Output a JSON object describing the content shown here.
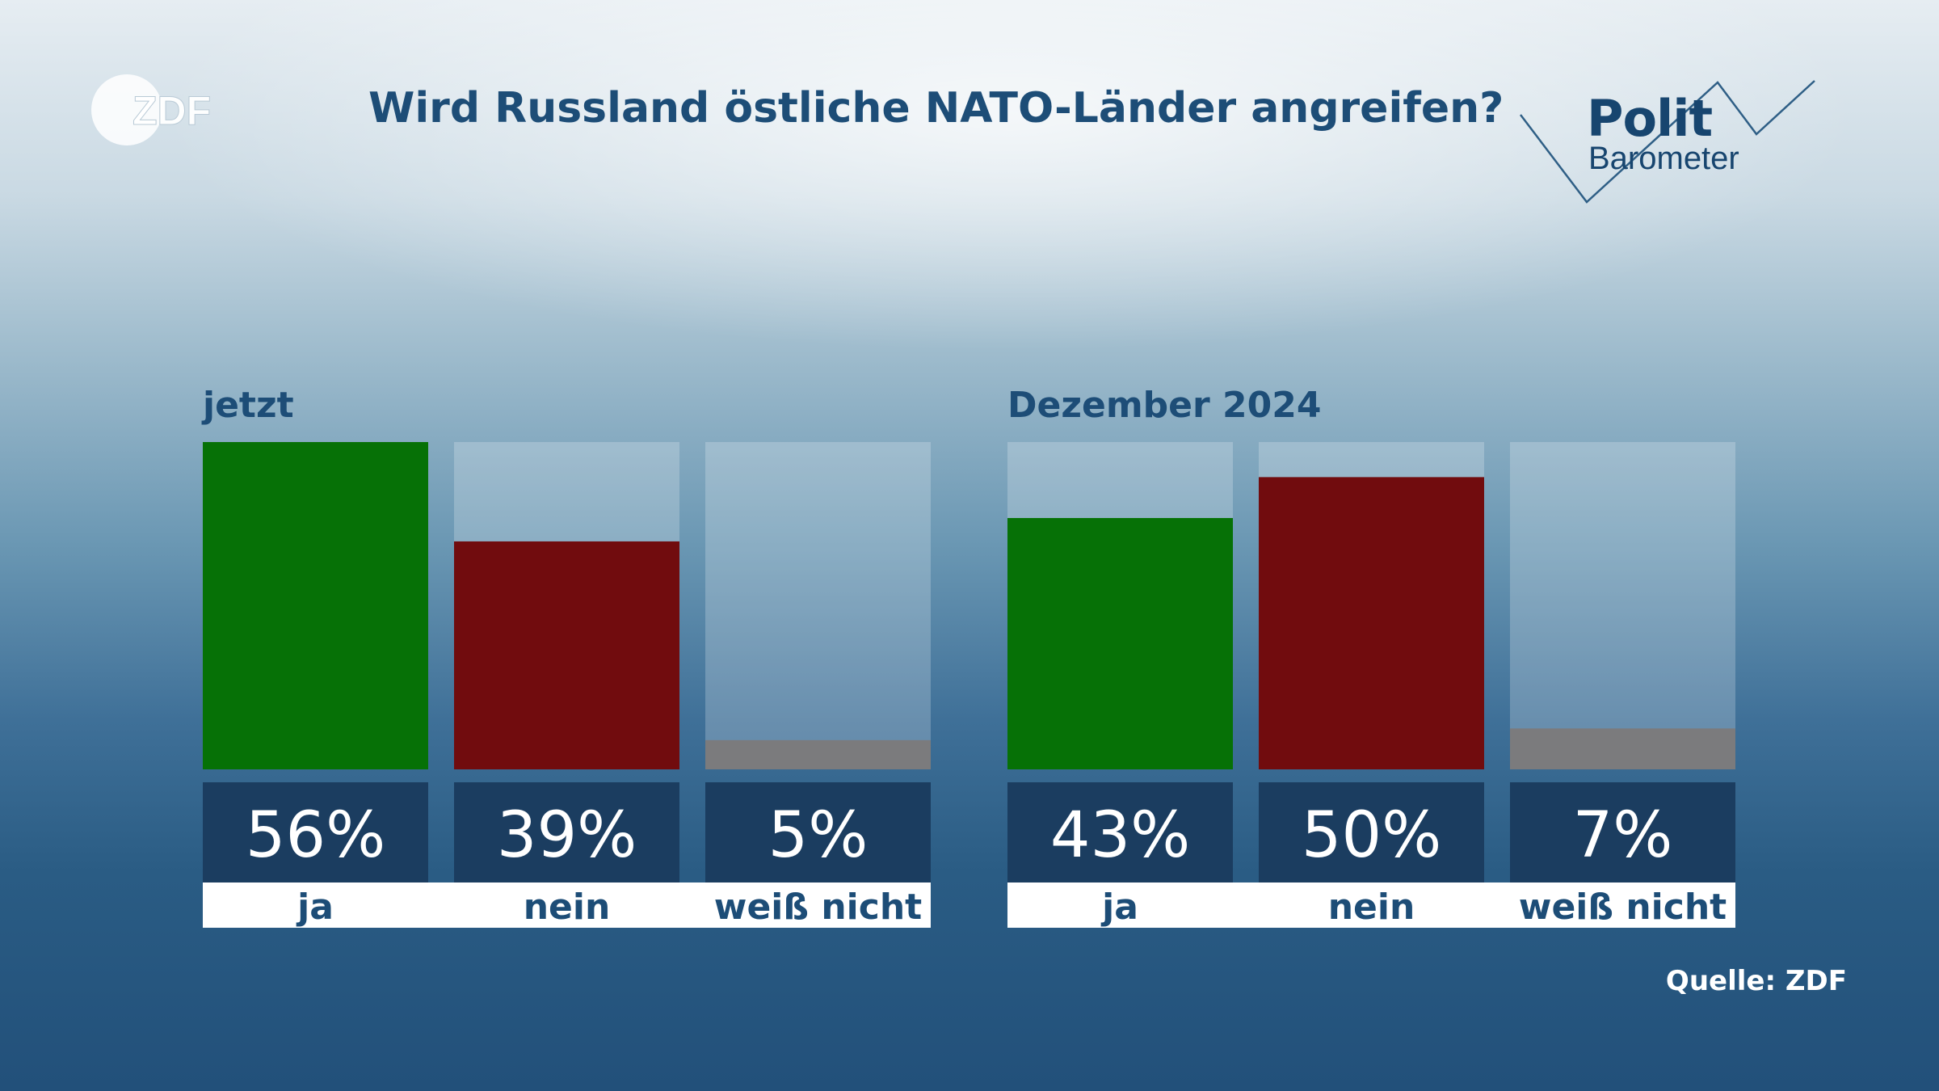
{
  "header": {
    "logo_text": "ZDF",
    "title": "Wird Russland östliche NATO-Länder angreifen?",
    "brand_line1": "Polit",
    "brand_line2": "Barometer"
  },
  "footer": {
    "source": "Quelle: ZDF"
  },
  "colors": {
    "ja": "#067106",
    "nein": "#710c0e",
    "weiss_nicht": "#7b7b7d",
    "label_box": "#1b3d60",
    "text_dark": "#1d4d77"
  },
  "chart_data": {
    "type": "bar",
    "title": "Wird Russland östliche NATO-Länder angreifen?",
    "ylim": [
      0,
      56
    ],
    "categories": [
      "ja",
      "nein",
      "weiß nicht"
    ],
    "groups": [
      {
        "name": "jetzt",
        "values": [
          56,
          39,
          5
        ],
        "labels": [
          "56%",
          "39%",
          "5%"
        ]
      },
      {
        "name": "Dezember 2024",
        "values": [
          43,
          50,
          7
        ],
        "labels": [
          "43%",
          "50%",
          "7%"
        ]
      }
    ]
  }
}
